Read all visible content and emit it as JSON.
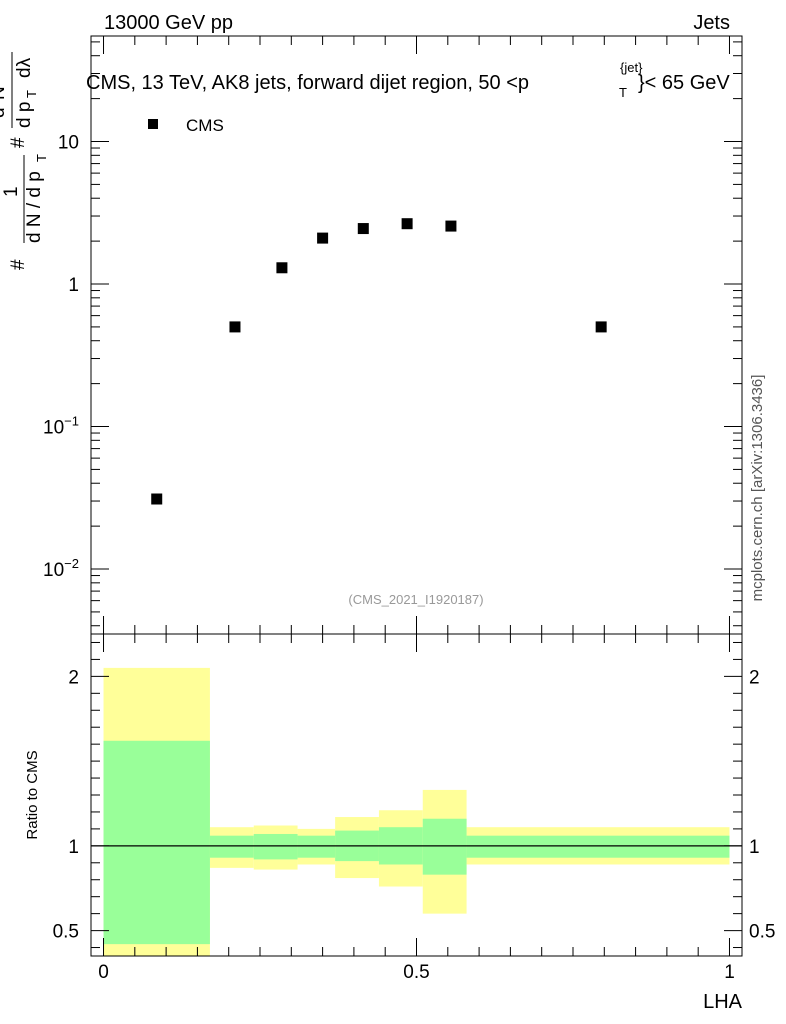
{
  "header": {
    "left": "13000 GeV pp",
    "right": "Jets"
  },
  "side_label": "mcplots.cern.ch [arXiv:1306.3436]",
  "chart_data": [
    {
      "type": "scatter",
      "title": "CMS, 13 TeV, AK8 jets, forward dijet region, 50 <p",
      "title_sup": "{jet}",
      "title_sub": "T",
      "title_tail": "}< 65 GeV",
      "watermark": "(CMS_2021_I1920187)",
      "ylabel": "1/dN/dp_T d²N/dp_T dλ",
      "ylabel_parts": {
        "num1": "#",
        "num2": "1",
        "den1": "d N / d p",
        "den_sub1": "T",
        "hash2": "#",
        "frac2_num": "d",
        "frac2_num_sup": "2",
        "frac2_num2": "N",
        "frac2_den": "d p",
        "frac2_den_sub": "T",
        "frac2_den2": "dλ",
        "hash3": "#"
      },
      "yscale": "log",
      "ylim": [
        0.0035,
        55
      ],
      "xlim": [
        -0.02,
        1.02
      ],
      "y_ticks": [
        {
          "value": 0.01,
          "base": "10",
          "exp": "−2"
        },
        {
          "value": 0.1,
          "base": "10",
          "exp": "−1"
        },
        {
          "value": 1,
          "base": "1",
          "exp": ""
        },
        {
          "value": 10,
          "base": "10",
          "exp": ""
        }
      ],
      "legend": {
        "position": "top-left",
        "entries": [
          "CMS"
        ]
      },
      "series": [
        {
          "name": "CMS",
          "marker": "square",
          "color": "#000000",
          "x": [
            0.085,
            0.21,
            0.285,
            0.35,
            0.415,
            0.485,
            0.555,
            0.795
          ],
          "y": [
            0.031,
            0.5,
            1.3,
            2.1,
            2.45,
            2.65,
            2.55,
            0.5
          ]
        }
      ]
    },
    {
      "type": "area",
      "ylabel": "Ratio to CMS",
      "xlabel": "LHA",
      "xlim": [
        -0.02,
        1.02
      ],
      "ylim": [
        0.35,
        2.25
      ],
      "x_ticks": [
        {
          "value": 0,
          "label": "0"
        },
        {
          "value": 0.5,
          "label": "0.5"
        },
        {
          "value": 1,
          "label": "1"
        }
      ],
      "y_ticks": [
        {
          "value": 0.5,
          "label": "0.5"
        },
        {
          "value": 1,
          "label": "1"
        },
        {
          "value": 2,
          "label": "2"
        }
      ],
      "reference_line": 1,
      "bins": [
        0,
        0.17,
        0.24,
        0.31,
        0.37,
        0.44,
        0.51,
        0.58,
        1.0
      ],
      "band_inner": {
        "color": "#99ff99",
        "low": [
          0.42,
          0.93,
          0.92,
          0.93,
          0.91,
          0.89,
          0.83,
          0.93
        ],
        "high": [
          1.62,
          1.06,
          1.07,
          1.06,
          1.09,
          1.11,
          1.16,
          1.06
        ]
      },
      "band_outer": {
        "color": "#ffff99",
        "low": [
          0.35,
          0.87,
          0.86,
          0.89,
          0.81,
          0.76,
          0.6,
          0.89
        ],
        "high": [
          2.05,
          1.11,
          1.12,
          1.1,
          1.17,
          1.21,
          1.33,
          1.11
        ]
      }
    }
  ]
}
